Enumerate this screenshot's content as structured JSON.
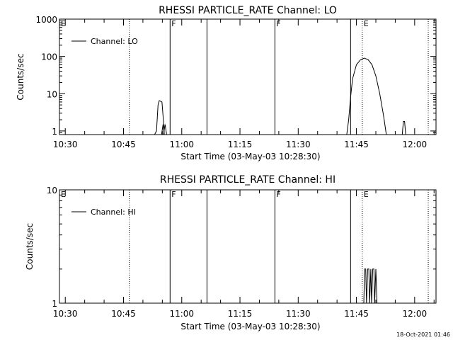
{
  "footer": {
    "timestamp": "18-Oct-2021 01:46"
  },
  "chart_data": [
    {
      "type": "line",
      "title": "RHESSI PARTICLE_RATE Channel: LO",
      "xlabel": "Start Time (03-May-03 10:28:30)",
      "ylabel": "Counts/sec",
      "x_unit": "minutes after 10:28:30",
      "xlim": [
        "10:28:30",
        "12:05:30"
      ],
      "xticks": [
        "10:30",
        "10:45",
        "11:00",
        "11:15",
        "11:30",
        "11:45",
        "12:00"
      ],
      "ylog": true,
      "ylim": [
        0.8,
        1000
      ],
      "yticks": [
        "1",
        "10",
        "100",
        "1000"
      ],
      "legend": {
        "label": "Channel: LO",
        "position": "top-left"
      },
      "events": [
        {
          "label": "E",
          "time": "10:28:30",
          "style": "dotted"
        },
        {
          "label": "",
          "time": "10:46:30",
          "style": "dotted"
        },
        {
          "label": "F",
          "time": "10:57:00",
          "style": "solid"
        },
        {
          "label": "",
          "time": "11:06:30",
          "style": "solid"
        },
        {
          "label": "F",
          "time": "11:24:00",
          "style": "solid"
        },
        {
          "label": "",
          "time": "11:43:30",
          "style": "solid"
        },
        {
          "label": "E",
          "time": "11:46:30",
          "style": "dotted"
        },
        {
          "label": "",
          "time": "12:03:30",
          "style": "dotted"
        }
      ],
      "series": [
        {
          "name": "Channel: LO",
          "segments": [
            [
              [
                24.5,
                0.8
              ],
              [
                25.0,
                1.0
              ],
              [
                25.4,
                5.0
              ],
              [
                25.7,
                6.5
              ],
              [
                26.4,
                6.0
              ],
              [
                26.7,
                2.5
              ],
              [
                27.0,
                0.8
              ]
            ],
            [
              [
                26.3,
                0.8
              ],
              [
                26.7,
                1.5
              ],
              [
                27.0,
                0.8
              ]
            ],
            [
              [
                26.8,
                0.8
              ],
              [
                27.2,
                1.5
              ],
              [
                27.6,
                0.8
              ]
            ],
            [
              [
                74.0,
                0.8
              ],
              [
                74.5,
                2.0
              ],
              [
                75.0,
                8.0
              ],
              [
                75.5,
                25.0
              ],
              [
                76.5,
                60.0
              ],
              [
                77.5,
                80.0
              ],
              [
                78.5,
                90.0
              ],
              [
                79.5,
                82.0
              ],
              [
                80.5,
                60.0
              ],
              [
                81.5,
                30.0
              ],
              [
                82.5,
                10.0
              ],
              [
                83.5,
                2.5
              ],
              [
                84.2,
                0.8
              ]
            ],
            [
              [
                88.3,
                0.8
              ],
              [
                88.6,
                1.8
              ],
              [
                88.9,
                1.8
              ],
              [
                89.2,
                0.8
              ]
            ]
          ]
        }
      ]
    },
    {
      "type": "line",
      "title": "RHESSI PARTICLE_RATE Channel: HI",
      "xlabel": "Start Time (03-May-03 10:28:30)",
      "ylabel": "Counts/sec",
      "x_unit": "minutes after 10:28:30",
      "xlim": [
        "10:28:30",
        "12:05:30"
      ],
      "xticks": [
        "10:30",
        "10:45",
        "11:00",
        "11:15",
        "11:30",
        "11:45",
        "12:00"
      ],
      "ylog": true,
      "ylim": [
        1,
        10
      ],
      "yticks": [
        "1",
        "10"
      ],
      "legend": {
        "label": "Channel: HI",
        "position": "top-left"
      },
      "events": [
        {
          "label": "E",
          "time": "10:28:30",
          "style": "dotted"
        },
        {
          "label": "",
          "time": "10:46:30",
          "style": "dotted"
        },
        {
          "label": "F",
          "time": "10:57:00",
          "style": "solid"
        },
        {
          "label": "",
          "time": "11:06:30",
          "style": "solid"
        },
        {
          "label": "F",
          "time": "11:24:00",
          "style": "solid"
        },
        {
          "label": "",
          "time": "11:43:30",
          "style": "solid"
        },
        {
          "label": "E",
          "time": "11:46:30",
          "style": "dotted"
        },
        {
          "label": "",
          "time": "12:03:30",
          "style": "dotted"
        }
      ],
      "series": [
        {
          "name": "Channel: HI",
          "segments": [
            [
              [
                78.4,
                1.0
              ],
              [
                78.6,
                2.0
              ],
              [
                78.9,
                2.0
              ],
              [
                79.1,
                1.0
              ],
              [
                79.4,
                2.0
              ],
              [
                79.7,
                2.0
              ],
              [
                79.9,
                1.0
              ],
              [
                80.2,
                2.0
              ],
              [
                80.4,
                1.0
              ],
              [
                80.7,
                2.0
              ],
              [
                81.0,
                2.0
              ],
              [
                81.2,
                1.0
              ],
              [
                81.5,
                2.0
              ],
              [
                81.8,
                1.0
              ]
            ]
          ]
        }
      ]
    }
  ]
}
